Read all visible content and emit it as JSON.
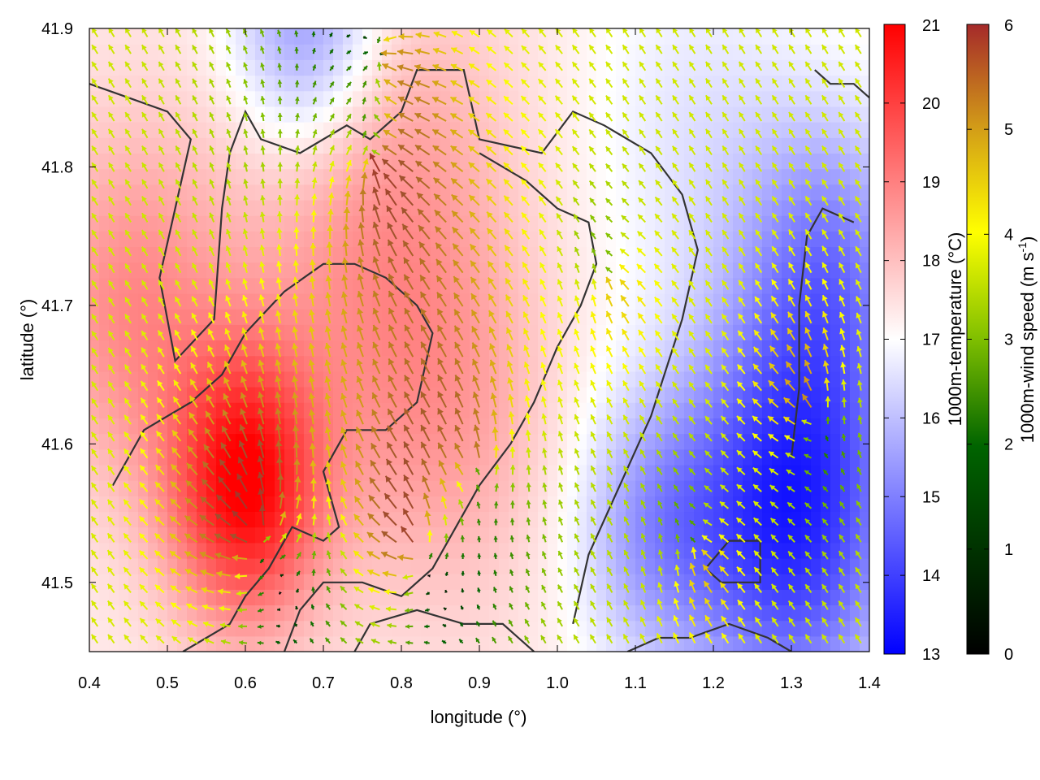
{
  "chart_data": {
    "type": "heatmap",
    "title": "",
    "xlabel": "longitude (°)",
    "ylabel": "latitude (°)",
    "xlim": [
      0.4,
      1.4
    ],
    "ylim": [
      41.45,
      41.9
    ],
    "xticks": [
      "0.4",
      "0.5",
      "0.6",
      "0.7",
      "0.8",
      "0.9",
      "1.0",
      "1.1",
      "1.2",
      "1.3",
      "1.4"
    ],
    "xtick_values": [
      0.4,
      0.5,
      0.6,
      0.7,
      0.8,
      0.9,
      1.0,
      1.1,
      1.2,
      1.3,
      1.4
    ],
    "yticks": [
      "41.5",
      "41.6",
      "41.7",
      "41.8",
      "41.9"
    ],
    "ytick_values": [
      41.5,
      41.6,
      41.7,
      41.8,
      41.9
    ],
    "temperature_colorbar": {
      "label": "1000m-temperature (°C)",
      "range": [
        13,
        21
      ],
      "ticks": [
        "13",
        "14",
        "15",
        "16",
        "17",
        "18",
        "19",
        "20",
        "21"
      ],
      "tick_values": [
        13,
        14,
        15,
        16,
        17,
        18,
        19,
        20,
        21
      ],
      "colors": [
        "#0000ff",
        "#ffffff",
        "#ff0000"
      ]
    },
    "wind_colorbar": {
      "label_main": "1000m-wind speed (m s",
      "label_sup": "-1",
      "label_end": ")",
      "range": [
        0,
        6
      ],
      "ticks": [
        "0",
        "1",
        "2",
        "3",
        "4",
        "5",
        "6"
      ],
      "tick_values": [
        0,
        1,
        2,
        3,
        4,
        5,
        6
      ],
      "colors": [
        "#000000",
        "#006400",
        "#7fbf00",
        "#ffff00",
        "#d4a017",
        "#a0522d",
        "#a52a2a"
      ]
    },
    "temperature_field": {
      "background": 17.3,
      "blobs": [
        {
          "lon": 0.6,
          "lat": 41.57,
          "amp": 3.6,
          "s": 0.07
        },
        {
          "lon": 0.45,
          "lat": 41.7,
          "amp": 1.5,
          "s": 0.09
        },
        {
          "lon": 0.75,
          "lat": 41.79,
          "amp": 1.4,
          "s": 0.12
        },
        {
          "lon": 0.85,
          "lat": 41.62,
          "amp": 1.1,
          "s": 0.1
        },
        {
          "lon": 1.3,
          "lat": 41.55,
          "amp": -3.8,
          "s": 0.1
        },
        {
          "lon": 1.35,
          "lat": 41.73,
          "amp": -2.0,
          "s": 0.08
        },
        {
          "lon": 0.68,
          "lat": 41.9,
          "amp": -2.4,
          "s": 0.07
        },
        {
          "lon": 1.12,
          "lat": 41.54,
          "amp": -1.6,
          "s": 0.07
        },
        {
          "lon": 1.18,
          "lat": 41.83,
          "amp": -0.7,
          "s": 0.1
        }
      ]
    },
    "wind_field": {
      "background_speed": 2.6,
      "background_dir": [
        -0.55,
        0.85
      ],
      "sources": [
        {
          "lon": 0.62,
          "lat": 41.53,
          "amp": 3.2,
          "s": 0.08
        },
        {
          "lon": 0.82,
          "lat": 41.52,
          "amp": 2.6,
          "s": 0.07
        },
        {
          "lon": 0.9,
          "lat": 41.58,
          "amp": 1.4,
          "s": 0.09
        },
        {
          "lon": 1.33,
          "lat": 41.62,
          "amp": 1.6,
          "s": 0.06
        },
        {
          "lon": 0.77,
          "lat": 41.8,
          "amp": -2.3,
          "s": 0.12
        },
        {
          "lon": 0.78,
          "lat": 41.88,
          "amp": -2.2,
          "s": 0.06
        },
        {
          "lon": 1.07,
          "lat": 41.72,
          "amp": -1.0,
          "s": 0.05
        },
        {
          "lon": 1.18,
          "lat": 41.52,
          "amp": -1.2,
          "s": 0.05
        }
      ]
    },
    "contours": [
      [
        [
          0.4,
          41.86
        ],
        [
          0.45,
          41.85
        ],
        [
          0.5,
          41.84
        ],
        [
          0.53,
          41.82
        ],
        [
          0.51,
          41.77
        ],
        [
          0.49,
          41.72
        ],
        [
          0.51,
          41.66
        ],
        [
          0.56,
          41.69
        ],
        [
          0.57,
          41.77
        ],
        [
          0.58,
          41.81
        ],
        [
          0.6,
          41.84
        ],
        [
          0.62,
          41.82
        ],
        [
          0.67,
          41.81
        ],
        [
          0.73,
          41.83
        ],
        [
          0.76,
          41.82
        ],
        [
          0.8,
          41.84
        ],
        [
          0.82,
          41.87
        ],
        [
          0.88,
          41.87
        ],
        [
          0.9,
          41.82
        ],
        [
          0.98,
          41.81
        ],
        [
          1.02,
          41.84
        ],
        [
          1.06,
          41.83
        ],
        [
          1.12,
          41.81
        ],
        [
          1.16,
          41.78
        ],
        [
          1.18,
          41.74
        ],
        [
          1.16,
          41.69
        ],
        [
          1.12,
          41.62
        ],
        [
          1.08,
          41.57
        ],
        [
          1.04,
          41.52
        ],
        [
          1.02,
          41.47
        ]
      ],
      [
        [
          0.43,
          41.57
        ],
        [
          0.47,
          41.61
        ],
        [
          0.5,
          41.62
        ],
        [
          0.53,
          41.63
        ],
        [
          0.57,
          41.65
        ],
        [
          0.6,
          41.68
        ],
        [
          0.65,
          41.71
        ],
        [
          0.7,
          41.73
        ],
        [
          0.74,
          41.73
        ],
        [
          0.78,
          41.72
        ],
        [
          0.82,
          41.7
        ],
        [
          0.84,
          41.68
        ],
        [
          0.82,
          41.63
        ],
        [
          0.78,
          41.61
        ],
        [
          0.73,
          41.61
        ],
        [
          0.7,
          41.58
        ],
        [
          0.72,
          41.54
        ],
        [
          0.7,
          41.53
        ],
        [
          0.66,
          41.54
        ],
        [
          0.63,
          41.51
        ],
        [
          0.6,
          41.49
        ],
        [
          0.58,
          41.47
        ],
        [
          0.55,
          41.46
        ],
        [
          0.52,
          41.45
        ]
      ],
      [
        [
          0.65,
          41.45
        ],
        [
          0.67,
          41.48
        ],
        [
          0.7,
          41.5
        ],
        [
          0.75,
          41.5
        ],
        [
          0.8,
          41.49
        ],
        [
          0.84,
          41.51
        ],
        [
          0.87,
          41.54
        ],
        [
          0.9,
          41.57
        ],
        [
          0.94,
          41.6
        ],
        [
          0.97,
          41.63
        ],
        [
          1.0,
          41.67
        ],
        [
          1.03,
          41.7
        ],
        [
          1.05,
          41.73
        ],
        [
          1.04,
          41.76
        ],
        [
          1.0,
          41.77
        ],
        [
          0.96,
          41.79
        ],
        [
          0.93,
          41.8
        ],
        [
          0.9,
          41.81
        ]
      ],
      [
        [
          0.74,
          41.45
        ],
        [
          0.76,
          41.47
        ],
        [
          0.82,
          41.48
        ],
        [
          0.88,
          41.47
        ],
        [
          0.93,
          41.47
        ],
        [
          0.97,
          41.45
        ]
      ],
      [
        [
          1.19,
          41.51
        ],
        [
          1.22,
          41.53
        ],
        [
          1.26,
          41.53
        ],
        [
          1.26,
          41.5
        ],
        [
          1.21,
          41.5
        ],
        [
          1.19,
          41.51
        ]
      ],
      [
        [
          1.09,
          41.45
        ],
        [
          1.13,
          41.46
        ],
        [
          1.17,
          41.46
        ],
        [
          1.22,
          41.47
        ],
        [
          1.27,
          41.46
        ],
        [
          1.3,
          41.45
        ]
      ],
      [
        [
          1.3,
          41.59
        ],
        [
          1.31,
          41.64
        ],
        [
          1.31,
          41.7
        ],
        [
          1.32,
          41.75
        ],
        [
          1.34,
          41.77
        ],
        [
          1.38,
          41.76
        ]
      ],
      [
        [
          1.33,
          41.87
        ],
        [
          1.35,
          41.86
        ],
        [
          1.38,
          41.86
        ],
        [
          1.4,
          41.85
        ]
      ]
    ]
  }
}
